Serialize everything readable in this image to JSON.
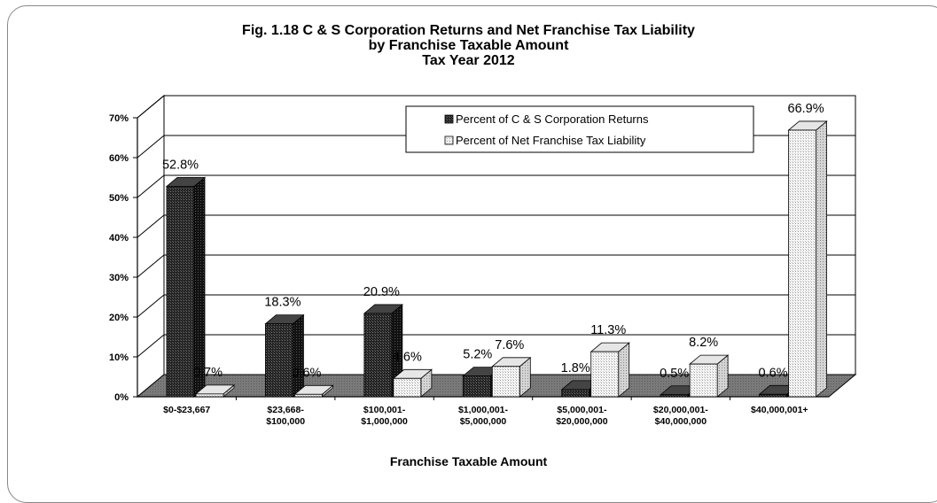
{
  "chart_data": {
    "type": "bar",
    "title": [
      "Fig. 1.18 C & S Corporation Returns and Net Franchise Tax Liability",
      "by Franchise Taxable Amount",
      "Tax Year 2012"
    ],
    "xlabel": "Franchise Taxable Amount",
    "ylabel": "",
    "ylim": [
      0,
      70
    ],
    "yticks": [
      "0%",
      "10%",
      "20%",
      "30%",
      "40%",
      "50%",
      "60%",
      "70%"
    ],
    "grid": true,
    "legend_position": "top-right",
    "categories": [
      [
        "$0-$23,667"
      ],
      [
        "$23,668-",
        "$100,000"
      ],
      [
        "$100,001-",
        "$1,000,000"
      ],
      [
        "$1,000,001-",
        "$5,000,000"
      ],
      [
        "$5,000,001-",
        "$20,000,000"
      ],
      [
        "$20,000,001-",
        "$40,000,000"
      ],
      [
        "$40,000,001+"
      ]
    ],
    "series": [
      {
        "name": "Percent of C & S Corporation  Returns",
        "values": [
          52.8,
          18.3,
          20.9,
          5.2,
          1.8,
          0.5,
          0.6
        ],
        "labels": [
          "52.8%",
          "18.3%",
          "20.9%",
          "5.2%",
          "1.8%",
          "0.5%",
          "0.6%"
        ],
        "color": "#1e1e1e"
      },
      {
        "name": "Percent of Net Franchise  Tax Liability",
        "values": [
          0.7,
          0.6,
          4.6,
          7.6,
          11.3,
          8.2,
          66.9
        ],
        "labels": [
          "0.7%",
          "0.6%",
          "4.6%",
          "7.6%",
          "11.3%",
          "8.2%",
          "66.9%"
        ],
        "color": "#f4f4f4"
      }
    ]
  }
}
